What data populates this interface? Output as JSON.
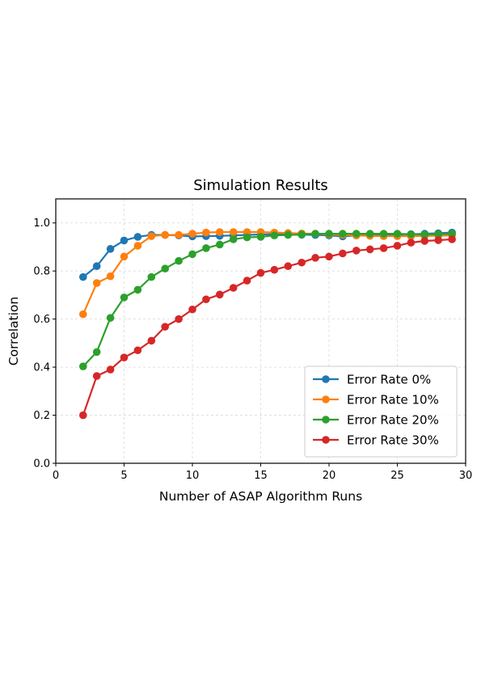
{
  "chart_data": {
    "type": "line",
    "title": "Simulation Results",
    "xlabel": "Number of ASAP Algorithm Runs",
    "ylabel": "Correlation",
    "xlim": [
      0,
      30
    ],
    "ylim": [
      0,
      1.1
    ],
    "xticks": [
      0,
      5,
      10,
      15,
      20,
      25,
      30
    ],
    "xtick_labels": [
      "0",
      "5",
      "10",
      "15",
      "20",
      "25",
      "30"
    ],
    "yticks": [
      0.0,
      0.2,
      0.4,
      0.6,
      0.8,
      1.0
    ],
    "ytick_labels": [
      "0.0",
      "0.2",
      "0.4",
      "0.6",
      "0.8",
      "1.0"
    ],
    "grid": true,
    "legend_position": "lower-right",
    "x": [
      2,
      3,
      4,
      5,
      6,
      7,
      8,
      9,
      10,
      11,
      12,
      13,
      14,
      15,
      16,
      17,
      18,
      19,
      20,
      21,
      22,
      23,
      24,
      25,
      26,
      27,
      28,
      29
    ],
    "series": [
      {
        "name": "Error Rate 0%",
        "color": "#1f77b4",
        "values": [
          0.775,
          0.82,
          0.892,
          0.927,
          0.942,
          0.95,
          0.95,
          0.948,
          0.944,
          0.945,
          0.946,
          0.948,
          0.95,
          0.952,
          0.953,
          0.952,
          0.951,
          0.95,
          0.948,
          0.944,
          0.948,
          0.95,
          0.951,
          0.952,
          0.953,
          0.955,
          0.957,
          0.96
        ]
      },
      {
        "name": "Error Rate 10%",
        "color": "#ff7f0e",
        "values": [
          0.62,
          0.75,
          0.778,
          0.86,
          0.905,
          0.945,
          0.95,
          0.95,
          0.955,
          0.96,
          0.962,
          0.962,
          0.962,
          0.962,
          0.96,
          0.958,
          0.956,
          0.955,
          0.952,
          0.95,
          0.948,
          0.946,
          0.945,
          0.945,
          0.945,
          0.946,
          0.947,
          0.948
        ]
      },
      {
        "name": "Error Rate 20%",
        "color": "#2ca02c",
        "values": [
          0.403,
          0.463,
          0.605,
          0.69,
          0.722,
          0.775,
          0.81,
          0.842,
          0.87,
          0.895,
          0.91,
          0.932,
          0.94,
          0.942,
          0.948,
          0.95,
          0.952,
          0.955,
          0.955,
          0.955,
          0.955,
          0.955,
          0.955,
          0.955,
          0.953,
          0.952,
          0.953,
          0.955
        ]
      },
      {
        "name": "Error Rate 30%",
        "color": "#d62728",
        "values": [
          0.2,
          0.363,
          0.39,
          0.44,
          0.47,
          0.51,
          0.568,
          0.6,
          0.64,
          0.682,
          0.702,
          0.73,
          0.76,
          0.792,
          0.805,
          0.82,
          0.835,
          0.855,
          0.86,
          0.873,
          0.885,
          0.89,
          0.895,
          0.905,
          0.918,
          0.925,
          0.928,
          0.932
        ]
      }
    ]
  }
}
